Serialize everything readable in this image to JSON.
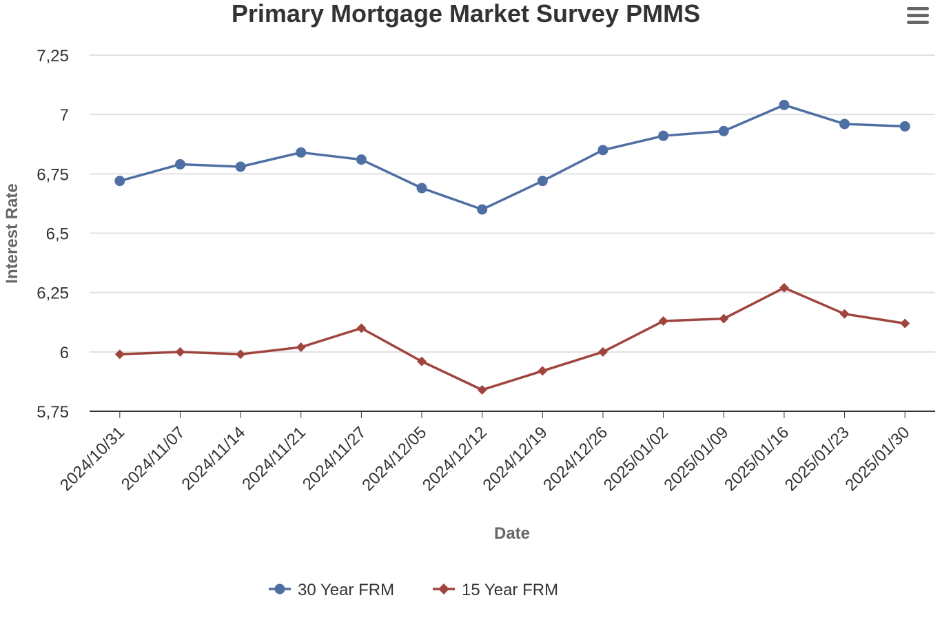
{
  "chart_data": {
    "type": "line",
    "title": "Primary Mortgage Market Survey PMMS",
    "xlabel": "Date",
    "ylabel": "Interest Rate",
    "categories": [
      "2024/10/31",
      "2024/11/07",
      "2024/11/14",
      "2024/11/21",
      "2024/11/27",
      "2024/12/05",
      "2024/12/12",
      "2024/12/19",
      "2024/12/26",
      "2025/01/02",
      "2025/01/09",
      "2025/01/16",
      "2025/01/23",
      "2025/01/30"
    ],
    "ylim": [
      5.75,
      7.25
    ],
    "yticks": [
      5.75,
      6,
      6.25,
      6.5,
      6.75,
      7,
      7.25
    ],
    "ytick_labels": [
      "5,75",
      "6",
      "6,25",
      "6,5",
      "6,75",
      "7",
      "7,25"
    ],
    "grid": true,
    "legend_position": "bottom-center",
    "series": [
      {
        "name": "30 Year FRM",
        "color": "#4e6fa3",
        "marker": "circle",
        "values": [
          6.72,
          6.79,
          6.78,
          6.84,
          6.81,
          6.69,
          6.6,
          6.72,
          6.85,
          6.91,
          6.93,
          7.04,
          6.96,
          6.95
        ]
      },
      {
        "name": "15 Year FRM",
        "color": "#a0443e",
        "marker": "diamond",
        "values": [
          5.99,
          6.0,
          5.99,
          6.02,
          6.1,
          5.96,
          5.84,
          5.92,
          6.0,
          6.13,
          6.14,
          6.27,
          6.16,
          6.12
        ]
      }
    ]
  },
  "menu": {
    "icon": "hamburger-menu-icon"
  }
}
